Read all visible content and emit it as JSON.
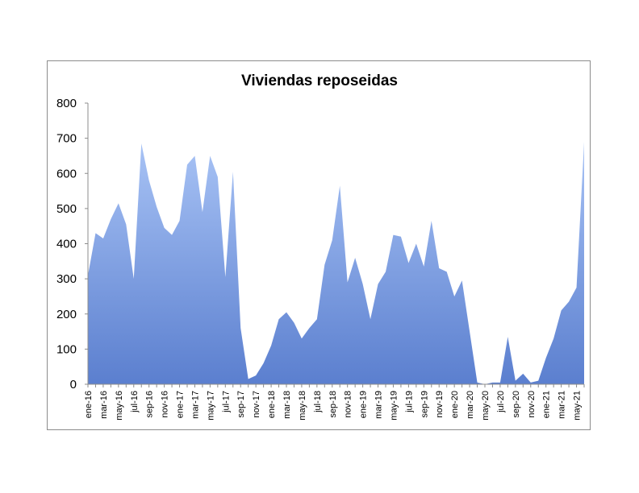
{
  "chart_data": {
    "type": "area",
    "title": "Viviendas reposeidas",
    "xlabel": "",
    "ylabel": "",
    "ylim": [
      0,
      800
    ],
    "yticks": [
      "0",
      "100",
      "200",
      "300",
      "400",
      "500",
      "600",
      "700",
      "800"
    ],
    "grid": false,
    "legend": "none",
    "x": [
      "ene-16",
      "feb-16",
      "mar-16",
      "abr-16",
      "may-16",
      "jun-16",
      "jul-16",
      "ago-16",
      "sep-16",
      "oct-16",
      "nov-16",
      "dic-16",
      "ene-17",
      "feb-17",
      "mar-17",
      "abr-17",
      "may-17",
      "jun-17",
      "jul-17",
      "ago-17",
      "sep-17",
      "oct-17",
      "nov-17",
      "dic-17",
      "ene-18",
      "feb-18",
      "mar-18",
      "abr-18",
      "may-18",
      "jun-18",
      "jul-18",
      "ago-18",
      "sep-18",
      "oct-18",
      "nov-18",
      "dic-18",
      "ene-19",
      "feb-19",
      "mar-19",
      "abr-19",
      "may-19",
      "jun-19",
      "jul-19",
      "ago-19",
      "sep-19",
      "oct-19",
      "nov-19",
      "dic-19",
      "ene-20",
      "feb-20",
      "mar-20",
      "abr-20",
      "may-20",
      "jun-20",
      "jul-20",
      "ago-20",
      "sep-20",
      "oct-20",
      "nov-20",
      "dic-20",
      "ene-21",
      "feb-21",
      "mar-21",
      "abr-21",
      "may-21",
      "jun-21"
    ],
    "xtick_labels": [
      "ene-16",
      "mar-16",
      "may-16",
      "jul-16",
      "sep-16",
      "nov-16",
      "ene-17",
      "mar-17",
      "may-17",
      "jul-17",
      "sep-17",
      "nov-17",
      "ene-18",
      "mar-18",
      "may-18",
      "jul-18",
      "sep-18",
      "nov-18",
      "ene-19",
      "mar-19",
      "may-19",
      "jul-19",
      "sep-19",
      "nov-19",
      "ene-20",
      "mar-20",
      "may-20",
      "jul-20",
      "sep-20",
      "nov-20",
      "ene-21",
      "mar-21",
      "may-21"
    ],
    "series": [
      {
        "values": [
          310,
          430,
          415,
          470,
          515,
          455,
          300,
          685,
          580,
          505,
          445,
          425,
          465,
          625,
          650,
          490,
          650,
          590,
          305,
          605,
          160,
          15,
          25,
          60,
          110,
          185,
          205,
          175,
          130,
          160,
          185,
          340,
          410,
          565,
          290,
          360,
          285,
          185,
          285,
          320,
          425,
          420,
          345,
          400,
          335,
          465,
          330,
          320,
          250,
          295,
          150,
          5,
          0,
          5,
          5,
          135,
          10,
          30,
          5,
          10,
          75,
          130,
          210,
          235,
          275,
          690
        ]
      }
    ],
    "colors": {
      "fill_top": "#a8c3f5",
      "fill_bottom": "#5b7fcf",
      "axis": "#8c8c8c",
      "frame": "#8c8c8c"
    }
  }
}
